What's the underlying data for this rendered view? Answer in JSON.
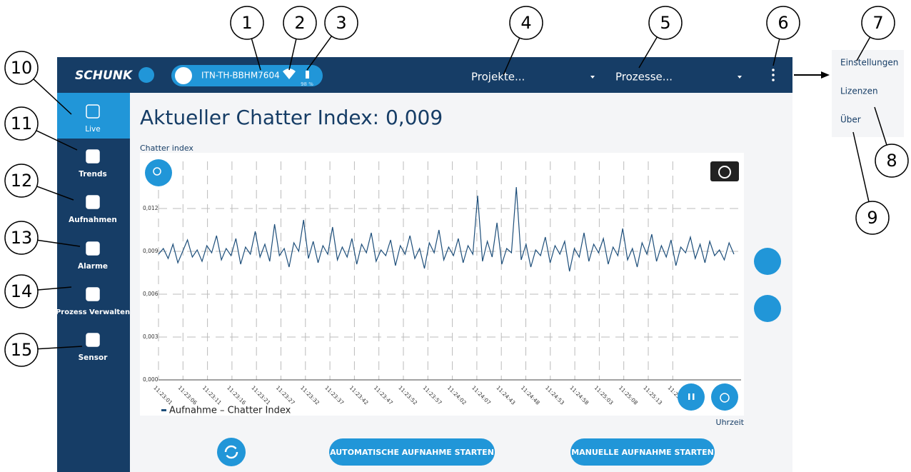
{
  "callouts": [
    1,
    2,
    3,
    4,
    5,
    6,
    7,
    8,
    9,
    10,
    11,
    12,
    13,
    14,
    15
  ],
  "header": {
    "logo": "SCHUNK",
    "device": "ITN-TH-BBHM7604",
    "battery": "98 %",
    "projects": "Projekte...",
    "processes": "Prozesse..."
  },
  "menu": [
    "Einstellungen",
    "Lizenzen",
    "Über"
  ],
  "sidebar": [
    "Live",
    "Trends",
    "Aufnahmen",
    "Alarme",
    "Prozess Verwalten",
    "Sensor"
  ],
  "title": "Aktueller Chatter Index: 0,009",
  "chart_data": {
    "type": "line",
    "y_label": "Chatter index",
    "x_label": "Uhrzeit",
    "x_tick_labels": [
      "11:23:01",
      "11:23:06",
      "11:23:11",
      "11:23:16",
      "11:23:21",
      "11:23:27",
      "11:23:32",
      "11:23:37",
      "11:23:42",
      "11:23:47",
      "11:23:52",
      "11:23:57",
      "11:24:02",
      "11:24:07",
      "11:24:43",
      "11:24:48",
      "11:24:53",
      "11:24:58",
      "11:25:03",
      "11:25:08",
      "11:25:13",
      "11:25:18"
    ],
    "ylim": [
      0,
      0.016
    ],
    "yticks": [
      {
        "value": 0,
        "label": "0,000"
      },
      {
        "value": 0.003,
        "label": "0,003"
      },
      {
        "value": 0.006,
        "label": "0,006"
      },
      {
        "value": 0.009,
        "label": "0,009"
      },
      {
        "value": 0.012,
        "label": "0,012"
      }
    ],
    "grid": true,
    "series": [
      {
        "name": "Aufnahme – Chatter Index",
        "color": "#1d4e7a",
        "values": [
          0.0088,
          0.0092,
          0.0085,
          0.0095,
          0.0082,
          0.009,
          0.0098,
          0.0086,
          0.0091,
          0.0083,
          0.0094,
          0.0089,
          0.0101,
          0.0084,
          0.0092,
          0.0087,
          0.0099,
          0.0081,
          0.0093,
          0.0088,
          0.0104,
          0.0086,
          0.0095,
          0.0083,
          0.0109,
          0.0087,
          0.0092,
          0.0079,
          0.0096,
          0.009,
          0.0112,
          0.0085,
          0.0097,
          0.0082,
          0.0094,
          0.0088,
          0.0107,
          0.0084,
          0.0093,
          0.0086,
          0.0099,
          0.0081,
          0.0095,
          0.0089,
          0.0103,
          0.0083,
          0.0091,
          0.0087,
          0.0098,
          0.008,
          0.0094,
          0.0088,
          0.0101,
          0.0085,
          0.0092,
          0.0078,
          0.0096,
          0.0089,
          0.0105,
          0.0084,
          0.0093,
          0.0087,
          0.0099,
          0.0082,
          0.0094,
          0.0088,
          0.0129,
          0.0083,
          0.0097,
          0.0086,
          0.011,
          0.0081,
          0.0092,
          0.0089,
          0.0135,
          0.0084,
          0.0095,
          0.0079,
          0.0091,
          0.0087,
          0.01,
          0.0082,
          0.0094,
          0.0088,
          0.0097,
          0.0076,
          0.0092,
          0.0086,
          0.0103,
          0.0083,
          0.0095,
          0.0089,
          0.0099,
          0.0081,
          0.0093,
          0.0087,
          0.0106,
          0.0084,
          0.0092,
          0.0079,
          0.0096,
          0.0088,
          0.0102,
          0.0083,
          0.0094,
          0.0086,
          0.0098,
          0.008,
          0.0093,
          0.0089,
          0.01,
          0.0085,
          0.0095,
          0.0082,
          0.0097,
          0.0087,
          0.0091,
          0.0084,
          0.0096,
          0.0088
        ]
      }
    ]
  },
  "buttons": [
    "AUTOMATISCHE AUFNAHME STARTEN",
    "MANUELLE AUFNAHME STARTEN"
  ]
}
